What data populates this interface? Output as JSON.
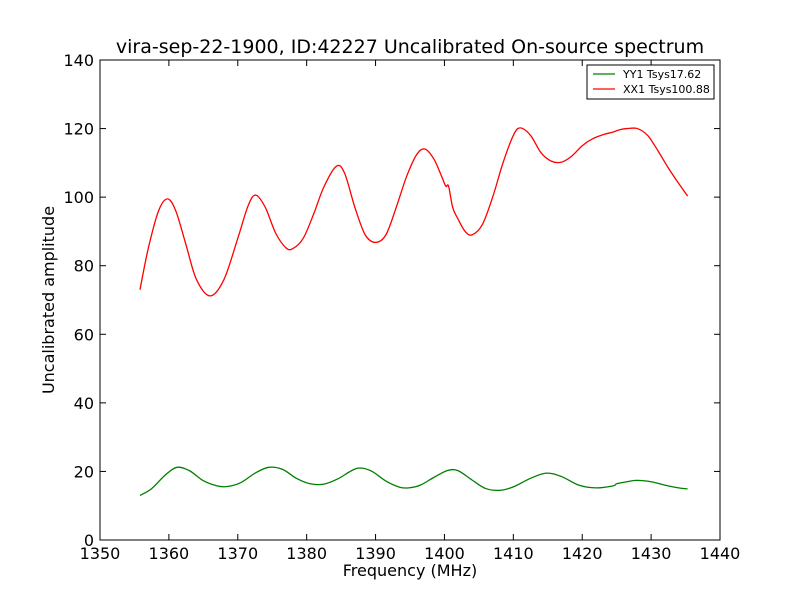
{
  "chart_data": {
    "type": "line",
    "title": "vira-sep-22-1900, ID:42227 Uncalibrated On-source spectrum",
    "xlabel": "Frequency (MHz)",
    "ylabel": "Uncalibrated amplitude",
    "xlim": [
      1350,
      1440
    ],
    "ylim": [
      0,
      140
    ],
    "xticks": [
      1350,
      1360,
      1370,
      1380,
      1390,
      1400,
      1410,
      1420,
      1430,
      1440
    ],
    "yticks": [
      0,
      20,
      40,
      60,
      80,
      100,
      120,
      140
    ],
    "grid": false,
    "legend_position": "top-right",
    "series": [
      {
        "name": "YY1 Tsys17.62",
        "color": "#008000",
        "x": [
          1355.8,
          1357.5,
          1359.5,
          1361.2,
          1363.0,
          1365.0,
          1367.0,
          1368.5,
          1370.5,
          1372.5,
          1374.5,
          1376.5,
          1378.5,
          1380.5,
          1382.5,
          1384.5,
          1386.5,
          1387.8,
          1389.5,
          1391.5,
          1393.5,
          1394.8,
          1396.5,
          1398.5,
          1400.5,
          1402.0,
          1404.0,
          1406.0,
          1408.0,
          1410.0,
          1412.5,
          1414.8,
          1417.0,
          1419.5,
          1422.0,
          1424.5,
          1425.0,
          1426.5,
          1428.0,
          1430.0,
          1432.0,
          1434.0,
          1435.3
        ],
        "y": [
          13.0,
          15.0,
          19.0,
          21.2,
          20.2,
          17.3,
          15.8,
          15.6,
          16.8,
          19.5,
          21.2,
          20.6,
          18.0,
          16.4,
          16.3,
          17.8,
          20.2,
          21.0,
          20.0,
          17.2,
          15.4,
          15.2,
          16.0,
          18.3,
          20.3,
          20.2,
          17.5,
          15.0,
          14.5,
          15.5,
          18.0,
          19.5,
          18.5,
          16.0,
          15.2,
          15.8,
          16.4,
          17.0,
          17.4,
          17.0,
          16.0,
          15.2,
          14.9
        ]
      },
      {
        "name": "XX1 Tsys100.88",
        "color": "#ff0000",
        "x": [
          1355.8,
          1357.0,
          1358.5,
          1359.8,
          1361.0,
          1362.5,
          1364.0,
          1366.0,
          1368.0,
          1370.0,
          1371.5,
          1372.6,
          1374.0,
          1375.5,
          1377.0,
          1378.0,
          1379.5,
          1381.0,
          1382.5,
          1384.3,
          1385.5,
          1387.0,
          1388.5,
          1390.0,
          1391.5,
          1393.0,
          1394.5,
          1396.0,
          1397.2,
          1398.5,
          1399.6,
          1400.2,
          1400.6,
          1401.2,
          1402.0,
          1403.0,
          1404.0,
          1405.5,
          1407.0,
          1408.5,
          1410.0,
          1411.0,
          1412.5,
          1414.0,
          1415.5,
          1417.0,
          1418.5,
          1420.0,
          1421.5,
          1423.0,
          1424.5,
          1425.5,
          1426.5,
          1428.0,
          1429.5,
          1431.0,
          1432.5,
          1434.0,
          1435.3
        ],
        "y": [
          73.0,
          85.0,
          96.0,
          99.5,
          96.0,
          86.0,
          76.0,
          71.2,
          76.0,
          88.0,
          97.5,
          100.6,
          97.0,
          89.5,
          85.2,
          85.0,
          88.0,
          95.0,
          103.0,
          109.0,
          107.0,
          97.0,
          89.0,
          86.8,
          89.0,
          97.0,
          106.0,
          112.5,
          114.0,
          111.0,
          106.0,
          103.2,
          103.2,
          97.0,
          93.5,
          90.0,
          89.0,
          92.0,
          100.0,
          110.0,
          118.0,
          120.2,
          118.0,
          113.0,
          110.5,
          110.2,
          112.0,
          115.0,
          117.0,
          118.2,
          119.0,
          119.7,
          120.0,
          120.0,
          118.0,
          113.5,
          108.5,
          104.0,
          100.3
        ]
      }
    ]
  }
}
